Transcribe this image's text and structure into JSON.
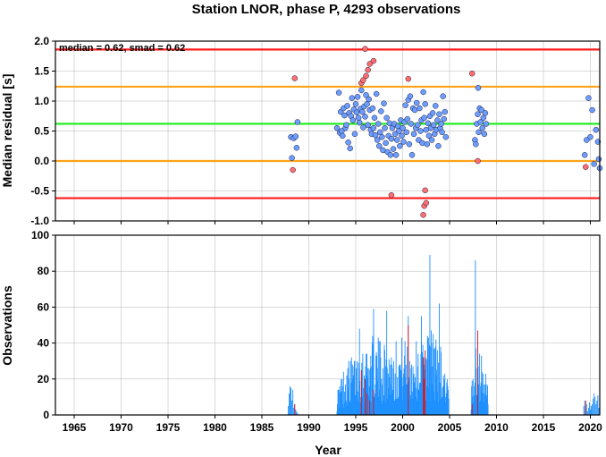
{
  "chart_data": [
    {
      "type": "scatter",
      "title": "Station LNOR, phase P, 4293 observations",
      "xlabel": "",
      "ylabel": "Median residual [s]",
      "xlim": [
        1963,
        2021
      ],
      "ylim": [
        -1.0,
        2.0
      ],
      "y_ticks": [
        "2.0",
        "1.5",
        "1.0",
        "0.5",
        "0.0",
        "-0.5",
        "-1.0"
      ],
      "grid": true,
      "annotation": "median = 0.62, smad = 0.62",
      "reference_lines": [
        {
          "y": 1.86,
          "color": "#ff1a1a"
        },
        {
          "y": 1.24,
          "color": "#ffa31a"
        },
        {
          "y": 0.62,
          "color": "#1aee1a"
        },
        {
          "y": 0.0,
          "color": "#ffa31a"
        },
        {
          "y": -0.62,
          "color": "#ff1a1a"
        }
      ],
      "colors": {
        "normal": "#6d9eff",
        "outlier": "#ff6e6e",
        "edge": "#1a1a40"
      },
      "series": [
        {
          "role": "normal",
          "points": [
            [
              1988.1,
              0.4
            ],
            [
              1988.2,
              0.05
            ],
            [
              1988.4,
              0.38
            ],
            [
              1988.6,
              0.41
            ],
            [
              1988.7,
              0.22
            ],
            [
              1988.8,
              0.65
            ],
            [
              1993.0,
              0.55
            ],
            [
              1993.2,
              1.14
            ],
            [
              1993.3,
              0.47
            ],
            [
              1993.4,
              0.82
            ],
            [
              1993.5,
              0.5
            ],
            [
              1993.6,
              0.42
            ],
            [
              1993.7,
              0.88
            ],
            [
              1993.8,
              0.76
            ],
            [
              1993.9,
              0.55
            ],
            [
              1994.0,
              0.6
            ],
            [
              1994.1,
              0.92
            ],
            [
              1994.2,
              0.31
            ],
            [
              1994.3,
              0.8
            ],
            [
              1994.4,
              0.21
            ],
            [
              1994.5,
              0.75
            ],
            [
              1994.6,
              1.05
            ],
            [
              1994.7,
              0.68
            ],
            [
              1994.8,
              0.86
            ],
            [
              1994.9,
              0.45
            ],
            [
              1995.0,
              0.95
            ],
            [
              1995.1,
              0.81
            ],
            [
              1995.2,
              1.07
            ],
            [
              1995.3,
              0.72
            ],
            [
              1995.4,
              0.64
            ],
            [
              1995.5,
              0.87
            ],
            [
              1995.6,
              1.18
            ],
            [
              1995.7,
              0.82
            ],
            [
              1995.8,
              0.56
            ],
            [
              1995.9,
              0.91
            ],
            [
              1996.0,
              0.74
            ],
            [
              1996.1,
              1.1
            ],
            [
              1996.2,
              0.95
            ],
            [
              1996.3,
              0.6
            ],
            [
              1996.4,
              1.03
            ],
            [
              1996.5,
              0.85
            ],
            [
              1996.6,
              0.52
            ],
            [
              1996.7,
              0.45
            ],
            [
              1996.8,
              0.88
            ],
            [
              1996.9,
              0.55
            ],
            [
              1997.0,
              0.72
            ],
            [
              1997.1,
              0.43
            ],
            [
              1997.2,
              1.12
            ],
            [
              1997.3,
              0.35
            ],
            [
              1997.4,
              0.62
            ],
            [
              1997.5,
              0.25
            ],
            [
              1997.6,
              0.48
            ],
            [
              1997.7,
              0.83
            ],
            [
              1997.8,
              0.4
            ],
            [
              1997.9,
              0.18
            ],
            [
              1998.0,
              0.96
            ],
            [
              1998.1,
              0.55
            ],
            [
              1998.2,
              0.3
            ],
            [
              1998.3,
              0.72
            ],
            [
              1998.4,
              0.15
            ],
            [
              1998.5,
              0.42
            ],
            [
              1998.6,
              0.63
            ],
            [
              1998.7,
              0.1
            ],
            [
              1998.8,
              0.37
            ],
            [
              1998.9,
              0.55
            ],
            [
              1999.0,
              0.2
            ],
            [
              1999.1,
              0.62
            ],
            [
              1999.2,
              0.45
            ],
            [
              1999.3,
              0.1
            ],
            [
              1999.4,
              0.35
            ],
            [
              1999.5,
              0.58
            ],
            [
              1999.6,
              0.5
            ],
            [
              1999.7,
              0.25
            ],
            [
              1999.8,
              0.68
            ],
            [
              1999.9,
              0.42
            ],
            [
              2000.0,
              0.55
            ],
            [
              2000.1,
              0.32
            ],
            [
              2000.2,
              0.65
            ],
            [
              2000.3,
              0.93
            ],
            [
              2000.4,
              0.48
            ],
            [
              2000.5,
              0.7
            ],
            [
              2000.6,
              1.02
            ],
            [
              2000.7,
              0.28
            ],
            [
              2000.8,
              1.08
            ],
            [
              2000.9,
              0.62
            ],
            [
              2001.0,
              0.1
            ],
            [
              2001.1,
              0.88
            ],
            [
              2001.2,
              0.45
            ],
            [
              2001.3,
              0.85
            ],
            [
              2001.4,
              0.55
            ],
            [
              2001.5,
              0.97
            ],
            [
              2001.6,
              0.6
            ],
            [
              2001.7,
              0.35
            ],
            [
              2001.8,
              0.88
            ],
            [
              2001.9,
              0.5
            ],
            [
              2002.0,
              0.68
            ],
            [
              2002.1,
              0.3
            ],
            [
              2002.2,
              1.15
            ],
            [
              2002.3,
              0.72
            ],
            [
              2002.4,
              0.95
            ],
            [
              2002.5,
              0.52
            ],
            [
              2002.6,
              0.28
            ],
            [
              2002.7,
              0.63
            ],
            [
              2002.8,
              0.42
            ],
            [
              2002.9,
              0.75
            ],
            [
              2003.0,
              0.55
            ],
            [
              2003.1,
              0.35
            ],
            [
              2003.2,
              0.8
            ],
            [
              2003.3,
              0.6
            ],
            [
              2003.4,
              0.45
            ],
            [
              2003.5,
              0.92
            ],
            [
              2003.6,
              0.52
            ],
            [
              2003.7,
              0.68
            ],
            [
              2003.8,
              0.25
            ],
            [
              2003.9,
              0.78
            ],
            [
              2004.0,
              0.55
            ],
            [
              2004.1,
              0.62
            ],
            [
              2004.2,
              0.48
            ],
            [
              2004.3,
              1.08
            ],
            [
              2004.4,
              0.7
            ],
            [
              2004.5,
              0.82
            ],
            [
              2004.6,
              0.4
            ],
            [
              2007.7,
              0.35
            ],
            [
              2007.8,
              0.28
            ],
            [
              2007.9,
              0.62
            ],
            [
              2008.0,
              0.78
            ],
            [
              2008.05,
              1.22
            ],
            [
              2008.1,
              0.48
            ],
            [
              2008.2,
              0.88
            ],
            [
              2008.3,
              0.65
            ],
            [
              2008.4,
              0.85
            ],
            [
              2008.5,
              0.55
            ],
            [
              2008.6,
              0.72
            ],
            [
              2008.7,
              0.45
            ],
            [
              2008.8,
              0.8
            ],
            [
              2008.9,
              0.62
            ],
            [
              2019.4,
              0.1
            ],
            [
              2019.6,
              0.35
            ],
            [
              2019.8,
              1.05
            ],
            [
              2020.0,
              0.4
            ],
            [
              2020.2,
              0.85
            ],
            [
              2020.4,
              -0.05
            ],
            [
              2020.6,
              0.52
            ],
            [
              2020.8,
              0.32
            ],
            [
              2020.9,
              0.03
            ],
            [
              2021.0,
              -0.12
            ]
          ]
        },
        {
          "role": "outlier",
          "points": [
            [
              1988.3,
              -0.15
            ],
            [
              1988.5,
              1.38
            ],
            [
              1995.6,
              1.3
            ],
            [
              1995.8,
              1.35
            ],
            [
              1996.0,
              1.87
            ],
            [
              1996.1,
              1.42
            ],
            [
              1996.3,
              1.52
            ],
            [
              1996.5,
              1.62
            ],
            [
              1996.9,
              1.67
            ],
            [
              1998.8,
              -0.57
            ],
            [
              2000.6,
              1.37
            ],
            [
              2002.2,
              -0.9
            ],
            [
              2002.3,
              -0.75
            ],
            [
              2002.4,
              -0.49
            ],
            [
              2002.5,
              -0.7
            ],
            [
              2007.4,
              1.46
            ],
            [
              2008.0,
              0.0
            ],
            [
              2019.5,
              -0.1
            ]
          ]
        }
      ]
    },
    {
      "type": "bar",
      "xlabel": "Year",
      "ylabel": "Observations",
      "xlim": [
        1963,
        2021
      ],
      "ylim": [
        0,
        100
      ],
      "y_ticks": [
        "100",
        "80",
        "60",
        "40",
        "20",
        "0"
      ],
      "x_ticks": [
        "1965",
        "1970",
        "1975",
        "1980",
        "1985",
        "1990",
        "1995",
        "2000",
        "2005",
        "2010",
        "2015",
        "2020"
      ],
      "grid": true,
      "colors": {
        "normal": "#1e90ff",
        "outlier": "#dd1111"
      },
      "segments": [
        {
          "start": 1987.8,
          "end": 1989.0,
          "step": 0.1,
          "values": [
            5,
            12,
            16,
            15,
            8,
            14,
            4,
            6,
            3,
            2,
            1,
            0
          ]
        },
        {
          "start": 1993.0,
          "end": 2004.9,
          "step": 0.05,
          "seed": 17,
          "envelope": [
            [
              1993.0,
              15
            ],
            [
              1994.0,
              30
            ],
            [
              1995.0,
              35
            ],
            [
              1996.0,
              42
            ],
            [
              1997.0,
              45
            ],
            [
              1998.0,
              40
            ],
            [
              1999.0,
              42
            ],
            [
              2000.0,
              44
            ],
            [
              2001.0,
              40
            ],
            [
              2002.0,
              44
            ],
            [
              2003.0,
              50
            ],
            [
              2004.0,
              42
            ],
            [
              2004.9,
              20
            ]
          ]
        },
        {
          "start": 2007.3,
          "end": 2009.1,
          "step": 0.05,
          "seed": 5,
          "envelope": [
            [
              2007.3,
              20
            ],
            [
              2007.8,
              40
            ],
            [
              2008.5,
              34
            ],
            [
              2009.1,
              22
            ]
          ]
        },
        {
          "start": 2019.3,
          "end": 2021.0,
          "step": 0.1,
          "values": [
            5,
            8,
            3,
            6,
            2,
            4,
            7,
            3,
            5,
            6,
            9,
            12,
            10,
            6,
            8,
            11,
            4
          ]
        }
      ],
      "peaks": [
        [
          2002.9,
          89
        ],
        [
          2007.75,
          86
        ],
        [
          1996.9,
          59
        ],
        [
          1998.3,
          58
        ],
        [
          2000.6,
          55
        ],
        [
          1995.4,
          48
        ],
        [
          2003.9,
          62
        ],
        [
          2002.0,
          55
        ]
      ],
      "outlier_bars": [
        [
          1988.5,
          6
        ],
        [
          1995.6,
          25
        ],
        [
          1996.0,
          20
        ],
        [
          1996.2,
          12
        ],
        [
          1996.5,
          8
        ],
        [
          1996.9,
          14
        ],
        [
          2000.6,
          50
        ],
        [
          2002.2,
          32
        ],
        [
          2002.3,
          20
        ],
        [
          2002.4,
          36
        ],
        [
          2007.4,
          6
        ],
        [
          2008.0,
          47
        ],
        [
          2019.5,
          8
        ]
      ]
    }
  ]
}
